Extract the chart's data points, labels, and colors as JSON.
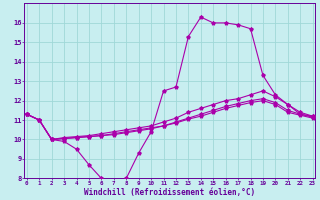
{
  "title": "",
  "xlabel": "Windchill (Refroidissement éolien,°C)",
  "ylabel": "",
  "bg_color": "#c8eef0",
  "line_color": "#aa00aa",
  "grid_color": "#a0d8d8",
  "axis_color": "#660099",
  "tick_color": "#660099",
  "xmin": 0,
  "xmax": 23,
  "ymin": 8,
  "ymax": 17,
  "yticks": [
    8,
    9,
    10,
    11,
    12,
    13,
    14,
    15,
    16
  ],
  "xticks": [
    0,
    1,
    2,
    3,
    4,
    5,
    6,
    7,
    8,
    9,
    10,
    11,
    12,
    13,
    14,
    15,
    16,
    17,
    18,
    19,
    20,
    21,
    22,
    23
  ],
  "curves": [
    [
      11.3,
      11.0,
      10.0,
      9.9,
      9.5,
      8.7,
      8.0,
      7.6,
      8.0,
      9.3,
      10.4,
      12.5,
      12.7,
      15.3,
      16.3,
      16.0,
      16.0,
      15.9,
      15.7,
      13.3,
      12.3,
      11.8,
      11.3,
      11.2
    ],
    [
      11.3,
      11.0,
      10.0,
      10.1,
      10.15,
      10.2,
      10.3,
      10.4,
      10.5,
      10.6,
      10.7,
      10.9,
      11.1,
      11.4,
      11.6,
      11.8,
      12.0,
      12.1,
      12.3,
      12.5,
      12.2,
      11.8,
      11.4,
      11.2
    ],
    [
      11.3,
      11.0,
      10.0,
      10.05,
      10.1,
      10.15,
      10.2,
      10.3,
      10.4,
      10.5,
      10.6,
      10.7,
      10.9,
      11.1,
      11.3,
      11.5,
      11.7,
      11.85,
      12.0,
      12.1,
      11.9,
      11.5,
      11.3,
      11.15
    ],
    [
      11.3,
      11.0,
      10.0,
      10.05,
      10.1,
      10.15,
      10.2,
      10.25,
      10.35,
      10.45,
      10.55,
      10.7,
      10.85,
      11.05,
      11.2,
      11.4,
      11.6,
      11.75,
      11.9,
      12.0,
      11.8,
      11.4,
      11.25,
      11.1
    ]
  ]
}
